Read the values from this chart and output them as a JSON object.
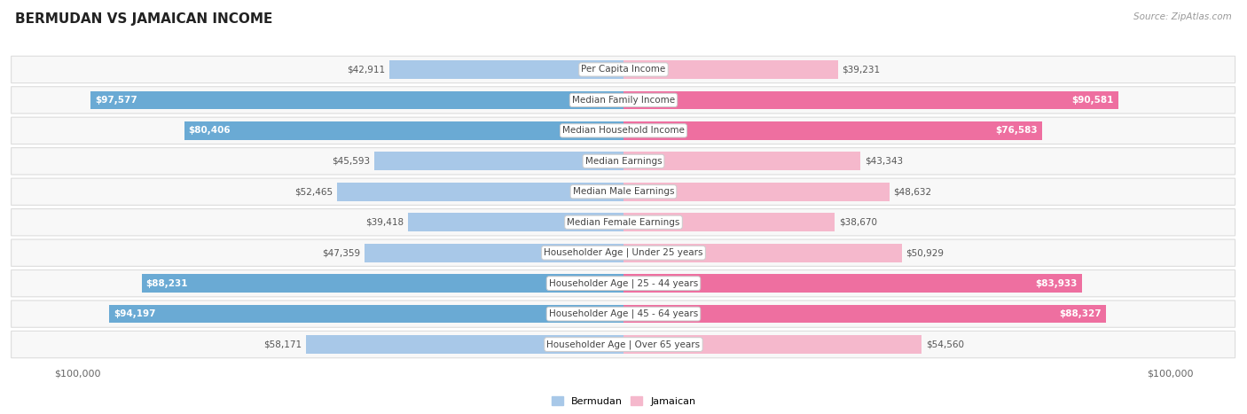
{
  "title": "BERMUDAN VS JAMAICAN INCOME",
  "source": "Source: ZipAtlas.com",
  "max_val": 100000,
  "categories": [
    "Per Capita Income",
    "Median Family Income",
    "Median Household Income",
    "Median Earnings",
    "Median Male Earnings",
    "Median Female Earnings",
    "Householder Age | Under 25 years",
    "Householder Age | 25 - 44 years",
    "Householder Age | 45 - 64 years",
    "Householder Age | Over 65 years"
  ],
  "bermudan": [
    42911,
    97577,
    80406,
    45593,
    52465,
    39418,
    47359,
    88231,
    94197,
    58171
  ],
  "jamaican": [
    39231,
    90581,
    76583,
    43343,
    48632,
    38670,
    50929,
    83933,
    88327,
    54560
  ],
  "bermudan_labels": [
    "$42,911",
    "$97,577",
    "$80,406",
    "$45,593",
    "$52,465",
    "$39,418",
    "$47,359",
    "$88,231",
    "$94,197",
    "$58,171"
  ],
  "jamaican_labels": [
    "$39,231",
    "$90,581",
    "$76,583",
    "$43,343",
    "$48,632",
    "$38,670",
    "$50,929",
    "$83,933",
    "$88,327",
    "$54,560"
  ],
  "blue_light": "#a8c8e8",
  "blue_dark": "#6aaad4",
  "pink_light": "#f5b8cc",
  "pink_dark": "#ee6fa0",
  "label_dark_color": "#555555",
  "label_white_color": "#ffffff",
  "row_bg": "#f8f8f8",
  "row_border": "#dddddd",
  "title_fontsize": 11,
  "label_fontsize": 7.5,
  "cat_fontsize": 7.5,
  "legend_fontsize": 8,
  "axis_label_fontsize": 8,
  "dark_threshold": 70000
}
